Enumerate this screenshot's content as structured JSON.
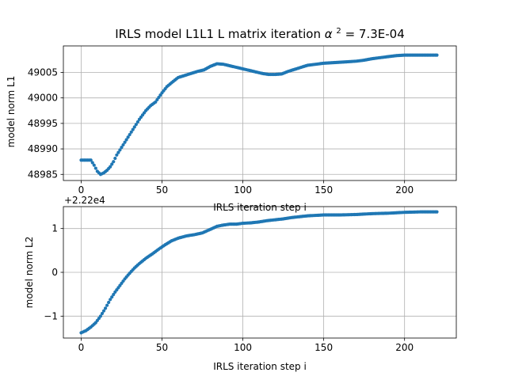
{
  "chart_data": [
    {
      "type": "scatter",
      "title": "IRLS model L1L1 L matrix iteration",
      "title_math_alpha": "α",
      "title_math_sup": "2",
      "title_suffix": " = 7.3E-04",
      "xlabel": "IRLS iteration step i",
      "ylabel": "model norm L1",
      "xlim": [
        -11,
        232
      ],
      "ylim": [
        48983.8,
        49010.2
      ],
      "xticks": [
        0,
        50,
        100,
        150,
        200
      ],
      "xtick_labels": [
        "0",
        "50",
        "100",
        "150",
        "200"
      ],
      "yticks": [
        48985,
        48990,
        48995,
        49000,
        49005
      ],
      "ytick_labels": [
        "48985",
        "48990",
        "48995",
        "49000",
        "49005"
      ],
      "grid": true,
      "color": "#1f77b4",
      "points": [
        [
          0,
          48987.8
        ],
        [
          3,
          48987.8
        ],
        [
          6,
          48987.8
        ],
        [
          8,
          48986.8
        ],
        [
          10,
          48985.6
        ],
        [
          12,
          48985.0
        ],
        [
          14,
          48985.3
        ],
        [
          16,
          48985.8
        ],
        [
          18,
          48986.5
        ],
        [
          20,
          48987.5
        ],
        [
          22,
          48988.8
        ],
        [
          25,
          48990.3
        ],
        [
          28,
          48991.8
        ],
        [
          30,
          48992.8
        ],
        [
          33,
          48994.3
        ],
        [
          36,
          48995.8
        ],
        [
          40,
          48997.5
        ],
        [
          43,
          48998.5
        ],
        [
          46,
          48999.2
        ],
        [
          50,
          49001.0
        ],
        [
          53,
          49002.2
        ],
        [
          56,
          49003.0
        ],
        [
          60,
          49004.0
        ],
        [
          64,
          49004.4
        ],
        [
          68,
          49004.8
        ],
        [
          72,
          49005.2
        ],
        [
          76,
          49005.5
        ],
        [
          80,
          49006.2
        ],
        [
          84,
          49006.7
        ],
        [
          88,
          49006.6
        ],
        [
          92,
          49006.3
        ],
        [
          96,
          49006.0
        ],
        [
          100,
          49005.7
        ],
        [
          104,
          49005.4
        ],
        [
          108,
          49005.1
        ],
        [
          112,
          49004.8
        ],
        [
          116,
          49004.6
        ],
        [
          120,
          49004.6
        ],
        [
          124,
          49004.7
        ],
        [
          128,
          49005.2
        ],
        [
          132,
          49005.6
        ],
        [
          136,
          49006.0
        ],
        [
          140,
          49006.4
        ],
        [
          145,
          49006.6
        ],
        [
          150,
          49006.8
        ],
        [
          155,
          49006.9
        ],
        [
          160,
          49007.0
        ],
        [
          165,
          49007.1
        ],
        [
          170,
          49007.2
        ],
        [
          175,
          49007.4
        ],
        [
          180,
          49007.7
        ],
        [
          185,
          49007.9
        ],
        [
          190,
          49008.1
        ],
        [
          195,
          49008.3
        ],
        [
          200,
          49008.4
        ],
        [
          205,
          49008.4
        ],
        [
          210,
          49008.4
        ],
        [
          215,
          49008.4
        ],
        [
          220,
          49008.4
        ]
      ]
    },
    {
      "type": "scatter",
      "offset_label": "+2.22e4",
      "xlabel": "IRLS iteration step i",
      "ylabel": "model norm L2",
      "xlim": [
        -11,
        232
      ],
      "ylim": [
        -1.5,
        1.5
      ],
      "xticks": [
        0,
        50,
        100,
        150,
        200
      ],
      "xtick_labels": [
        "0",
        "50",
        "100",
        "150",
        "200"
      ],
      "yticks": [
        -1,
        0,
        1
      ],
      "ytick_labels": [
        "−1",
        "0",
        "1"
      ],
      "grid": true,
      "color": "#1f77b4",
      "points": [
        [
          0,
          -1.38
        ],
        [
          3,
          -1.33
        ],
        [
          6,
          -1.25
        ],
        [
          9,
          -1.15
        ],
        [
          12,
          -1.0
        ],
        [
          15,
          -0.82
        ],
        [
          18,
          -0.62
        ],
        [
          21,
          -0.45
        ],
        [
          24,
          -0.3
        ],
        [
          27,
          -0.15
        ],
        [
          30,
          -0.02
        ],
        [
          33,
          0.1
        ],
        [
          36,
          0.2
        ],
        [
          40,
          0.32
        ],
        [
          44,
          0.42
        ],
        [
          48,
          0.53
        ],
        [
          52,
          0.63
        ],
        [
          56,
          0.72
        ],
        [
          60,
          0.78
        ],
        [
          65,
          0.83
        ],
        [
          70,
          0.86
        ],
        [
          75,
          0.9
        ],
        [
          78,
          0.95
        ],
        [
          81,
          1.0
        ],
        [
          84,
          1.05
        ],
        [
          88,
          1.08
        ],
        [
          92,
          1.1
        ],
        [
          96,
          1.1
        ],
        [
          100,
          1.12
        ],
        [
          105,
          1.13
        ],
        [
          110,
          1.15
        ],
        [
          115,
          1.18
        ],
        [
          120,
          1.2
        ],
        [
          125,
          1.22
        ],
        [
          130,
          1.25
        ],
        [
          135,
          1.27
        ],
        [
          140,
          1.29
        ],
        [
          145,
          1.3
        ],
        [
          150,
          1.31
        ],
        [
          160,
          1.31
        ],
        [
          170,
          1.32
        ],
        [
          175,
          1.33
        ],
        [
          180,
          1.34
        ],
        [
          190,
          1.35
        ],
        [
          200,
          1.37
        ],
        [
          210,
          1.38
        ],
        [
          220,
          1.38
        ]
      ]
    }
  ]
}
